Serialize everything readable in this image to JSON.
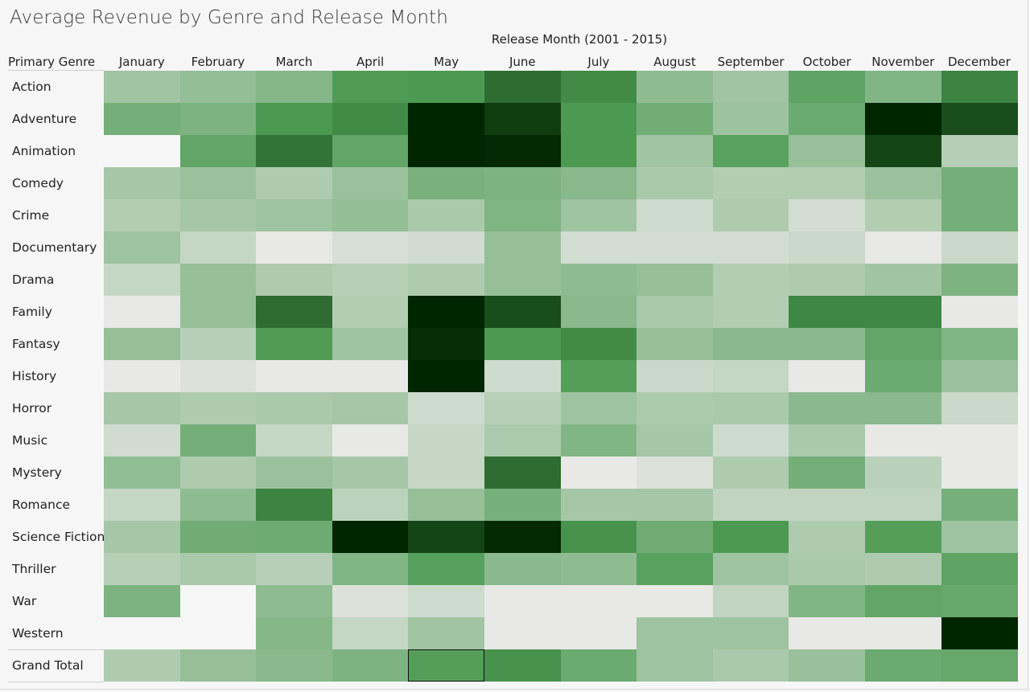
{
  "chart_data": {
    "type": "heatmap",
    "title": "Average Revenue by Genre and Release Month",
    "column_header": "Release Month (2001 - 2015)",
    "row_header": "Primary Genre",
    "columns": [
      "January",
      "February",
      "March",
      "April",
      "May",
      "June",
      "July",
      "August",
      "September",
      "October",
      "November",
      "December"
    ],
    "rows": [
      "Action",
      "Adventure",
      "Animation",
      "Comedy",
      "Crime",
      "Documentary",
      "Drama",
      "Family",
      "Fantasy",
      "History",
      "Horror",
      "Music",
      "Mystery",
      "Romance",
      "Science Fiction",
      "Thriller",
      "War",
      "Western",
      "Grand Total"
    ],
    "color_scale": {
      "low": "#e8e8e6",
      "high": "#002600",
      "mid": "#4c9a52",
      "range": [
        0,
        100
      ]
    },
    "values": [
      [
        32,
        38,
        45,
        68,
        70,
        82,
        74,
        40,
        32,
        62,
        46,
        76
      ],
      [
        52,
        48,
        70,
        74,
        100,
        94,
        70,
        53,
        34,
        56,
        100,
        90
      ],
      [
        null,
        60,
        80,
        60,
        100,
        99,
        70,
        32,
        64,
        36,
        92,
        23
      ],
      [
        30,
        35,
        26,
        35,
        50,
        48,
        43,
        28,
        24,
        24,
        35,
        52
      ],
      [
        24,
        30,
        33,
        38,
        28,
        47,
        33,
        12,
        26,
        10,
        24,
        52
      ],
      [
        33,
        16,
        0,
        8,
        11,
        37,
        10,
        10,
        10,
        14,
        0,
        14
      ],
      [
        16,
        37,
        26,
        22,
        26,
        37,
        40,
        37,
        24,
        26,
        32,
        48
      ],
      [
        0,
        37,
        82,
        24,
        100,
        90,
        43,
        28,
        24,
        75,
        75,
        0
      ],
      [
        37,
        22,
        68,
        33,
        98,
        70,
        74,
        37,
        42,
        42,
        60,
        46
      ],
      [
        0,
        6,
        0,
        0,
        100,
        12,
        66,
        14,
        16,
        0,
        56,
        35
      ],
      [
        30,
        26,
        28,
        30,
        12,
        22,
        33,
        27,
        28,
        42,
        42,
        14
      ],
      [
        11,
        52,
        16,
        0,
        15,
        27,
        46,
        30,
        12,
        28,
        0,
        0
      ],
      [
        39,
        26,
        35,
        30,
        15,
        82,
        0,
        6,
        26,
        52,
        21,
        0
      ],
      [
        16,
        40,
        76,
        20,
        37,
        51,
        30,
        30,
        18,
        18,
        18,
        51
      ],
      [
        30,
        54,
        55,
        100,
        92,
        99,
        72,
        54,
        70,
        26,
        66,
        33
      ],
      [
        22,
        28,
        22,
        46,
        65,
        42,
        40,
        64,
        33,
        28,
        26,
        62
      ],
      [
        48,
        null,
        40,
        6,
        12,
        0,
        0,
        0,
        18,
        46,
        60,
        58
      ],
      [
        null,
        null,
        44,
        16,
        32,
        0,
        0,
        33,
        33,
        0,
        0,
        100
      ],
      [
        26,
        37,
        43,
        48,
        66,
        72,
        56,
        33,
        28,
        36,
        56,
        58
      ]
    ],
    "selected_cell": {
      "row": "Grand Total",
      "column": "May"
    }
  }
}
